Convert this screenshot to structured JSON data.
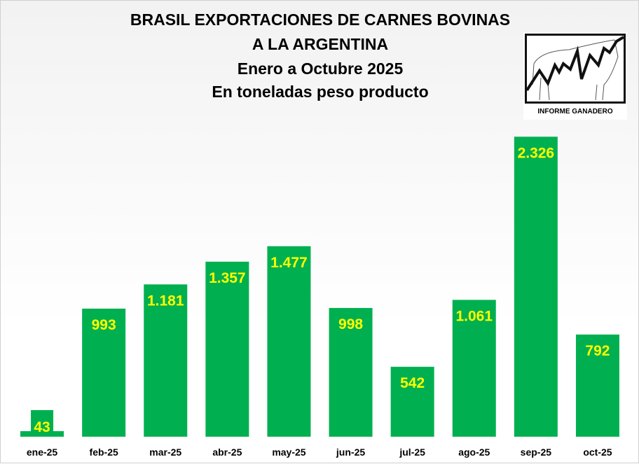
{
  "chart_data": {
    "type": "bar",
    "title": [
      "BRASIL EXPORTACIONES DE CARNES BOVINAS",
      "A LA ARGENTINA",
      "Enero a Octubre 2025",
      "En toneladas peso producto"
    ],
    "categories": [
      "ene-25",
      "feb-25",
      "mar-25",
      "abr-25",
      "may-25",
      "jun-25",
      "jul-25",
      "ago-25",
      "sep-25",
      "oct-25"
    ],
    "values": [
      43,
      993,
      1181,
      1357,
      1477,
      998,
      542,
      1061,
      2326,
      792
    ],
    "value_labels": [
      "43",
      "993",
      "1.181",
      "1.357",
      "1.477",
      "998",
      "542",
      "1.061",
      "2.326",
      "792"
    ],
    "xlabel": "",
    "ylabel": "",
    "ylim": [
      0,
      2500
    ],
    "grid": false,
    "legend": "none",
    "bar_color": "#00b050",
    "label_color": "#ffff00"
  },
  "logo": {
    "text": "INFORME GANADERO"
  }
}
